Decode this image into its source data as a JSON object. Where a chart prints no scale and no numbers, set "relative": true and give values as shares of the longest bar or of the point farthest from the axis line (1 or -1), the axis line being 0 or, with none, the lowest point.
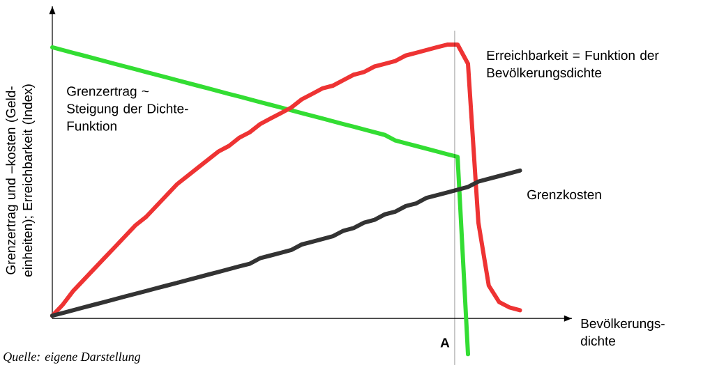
{
  "chart_data": {
    "type": "line",
    "relative": true,
    "xlabel": "Bevölkerungs-dichte",
    "ylabel": "Grenzertrag und –kosten (Geld-einheiten); Erreichbarkeit (Index)",
    "line_style": "solid",
    "marker": "none",
    "categories": [
      null,
      null,
      null,
      null,
      null,
      null,
      null,
      null,
      null,
      null,
      null,
      null,
      null,
      null,
      null,
      null,
      null,
      null,
      null,
      null,
      null,
      null,
      null,
      null,
      null,
      null,
      null,
      null,
      null,
      null,
      null,
      null,
      null,
      null,
      null,
      null,
      null,
      null,
      null,
      null,
      null,
      null,
      null,
      null,
      null,
      null
    ],
    "series": [
      {
        "name": "Grenzertrag ~ Steigung der Dichte-Funktion",
        "color": "#33dd33",
        "values": [
          0.99,
          0.98,
          0.97,
          0.96,
          0.95,
          0.94,
          0.93,
          0.92,
          0.91,
          0.9,
          0.89,
          0.88,
          0.87,
          0.86,
          0.85,
          0.84,
          0.83,
          0.82,
          0.81,
          0.8,
          0.79,
          0.78,
          0.77,
          0.76,
          0.75,
          0.74,
          0.73,
          0.72,
          0.71,
          0.7,
          0.69,
          0.68,
          0.67,
          0.65,
          0.64,
          0.63,
          0.62,
          0.61,
          0.6,
          0.59,
          -0.13,
          null,
          null,
          null,
          null,
          null
        ]
      },
      {
        "name": "Erreichbarkeit = Funktion der Bevölkerungsdichte",
        "color": "#ee3333",
        "values": [
          0.01,
          0.05,
          0.1,
          0.14,
          0.18,
          0.22,
          0.26,
          0.3,
          0.34,
          0.37,
          0.41,
          0.45,
          0.49,
          0.52,
          0.55,
          0.58,
          0.61,
          0.63,
          0.66,
          0.68,
          0.71,
          0.73,
          0.75,
          0.77,
          0.8,
          0.82,
          0.84,
          0.85,
          0.87,
          0.89,
          0.9,
          0.92,
          0.93,
          0.94,
          0.96,
          0.97,
          0.98,
          0.99,
          1.0,
          1.0,
          0.93,
          0.35,
          0.12,
          0.06,
          0.04,
          0.03
        ]
      },
      {
        "name": "Grenzkosten",
        "color": "#333333",
        "values": [
          0.01,
          0.02,
          0.03,
          0.04,
          0.05,
          0.06,
          0.07,
          0.08,
          0.09,
          0.1,
          0.11,
          0.12,
          0.13,
          0.14,
          0.15,
          0.16,
          0.17,
          0.18,
          0.19,
          0.2,
          0.22,
          0.23,
          0.24,
          0.25,
          0.27,
          0.28,
          0.29,
          0.3,
          0.32,
          0.33,
          0.35,
          0.36,
          0.38,
          0.39,
          0.41,
          0.42,
          0.44,
          0.45,
          0.46,
          0.47,
          0.48,
          0.5,
          0.51,
          0.52,
          0.53,
          0.54
        ]
      }
    ],
    "annotations": [
      "Quelle: eigene Darstellung",
      "A"
    ]
  }
}
